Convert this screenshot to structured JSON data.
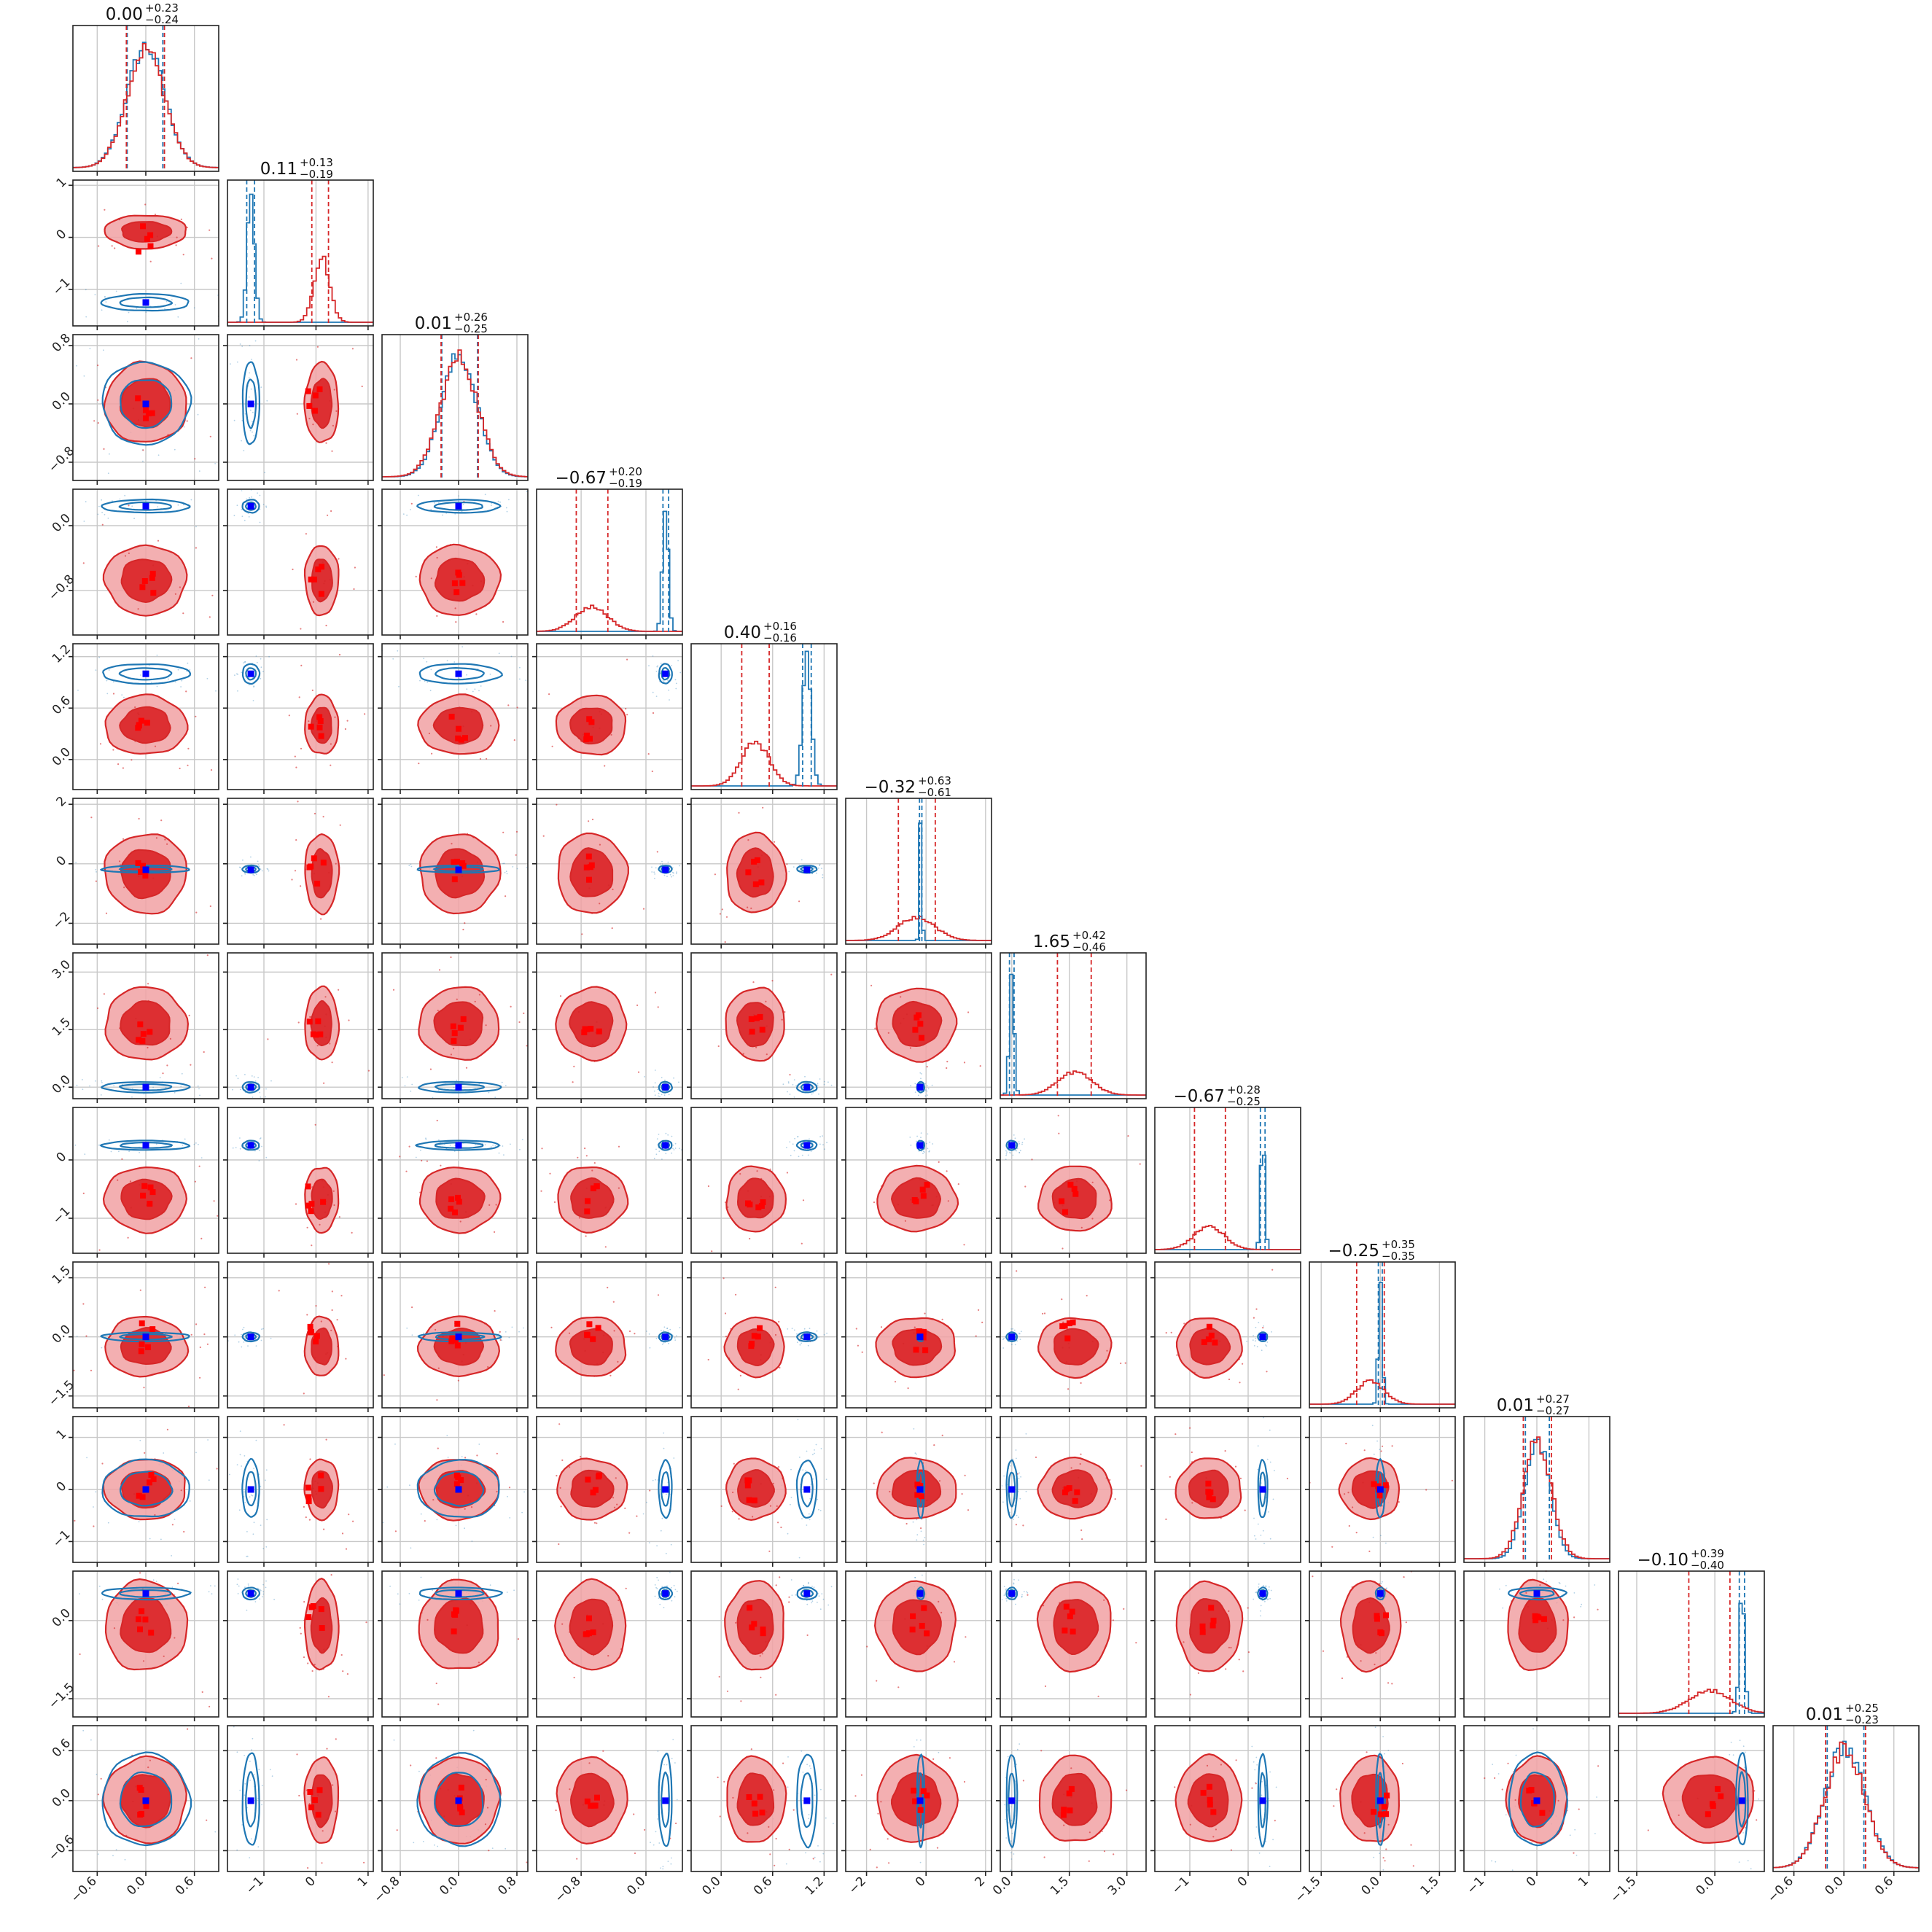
{
  "chart_data": {
    "type": "corner",
    "n_params": 12,
    "colors": {
      "series_a": "#d62728",
      "series_a_fill_light": "#f1a1a3",
      "series_a_fill_dark": "#dd2f32",
      "series_b": "#1f77b4",
      "marker_a": "#ff0000",
      "marker_b": "#0000ff",
      "grid": "#c8c8c8"
    },
    "grid": true,
    "parameters": [
      {
        "title": {
          "median": "0.00",
          "plus": "+0.23",
          "minus": "−0.24"
        },
        "range": [
          -0.9,
          0.9
        ],
        "ticks": [
          {
            "v": -0.6,
            "label": "−0.6"
          },
          {
            "v": 0.0,
            "label": "0.0"
          },
          {
            "v": 0.6,
            "label": "0.6"
          }
        ],
        "series_a": {
          "mean": 0.0,
          "sd": 0.235
        },
        "series_b": {
          "mean": 0.0,
          "sd": 0.235
        },
        "quantiles_a": [
          -0.24,
          0.23
        ],
        "quantiles_b": [
          -0.23,
          0.21
        ],
        "truth_a": 0.0,
        "truth_b": 0.0
      },
      {
        "title": {
          "median": "0.11",
          "plus": "+0.13",
          "minus": "−0.19"
        },
        "range": [
          -1.7,
          1.1
        ],
        "ticks": [
          {
            "v": -1,
            "label": "−1"
          },
          {
            "v": 0,
            "label": "0"
          },
          {
            "v": 1,
            "label": "1"
          }
        ],
        "series_a": {
          "mean": 0.11,
          "sd": 0.15
        },
        "series_b": {
          "mean": -1.25,
          "sd": 0.07
        },
        "quantiles_a": [
          -0.08,
          0.24
        ],
        "quantiles_b": [
          -1.33,
          -1.18
        ],
        "truth_a": 0.0,
        "truth_b": -1.25
      },
      {
        "title": {
          "median": "0.01",
          "plus": "+0.26",
          "minus": "−0.25"
        },
        "range": [
          -1.05,
          0.95
        ],
        "ticks": [
          {
            "v": -0.8,
            "label": "−0.8"
          },
          {
            "v": 0.0,
            "label": "0.0"
          },
          {
            "v": 0.8,
            "label": "0.8"
          }
        ],
        "series_a": {
          "mean": 0.01,
          "sd": 0.255
        },
        "series_b": {
          "mean": 0.01,
          "sd": 0.245
        },
        "quantiles_a": [
          -0.24,
          0.27
        ],
        "quantiles_b": [
          -0.23,
          0.26
        ],
        "truth_a": 0.0,
        "truth_b": 0.0
      },
      {
        "title": {
          "median": "−0.67",
          "plus": "+0.20",
          "minus": "−0.19"
        },
        "range": [
          -1.35,
          0.45
        ],
        "ticks": [
          {
            "v": -0.8,
            "label": "−0.8"
          },
          {
            "v": 0.0,
            "label": "0.0"
          }
        ],
        "series_a": {
          "mean": -0.67,
          "sd": 0.2
        },
        "series_b": {
          "mean": 0.24,
          "sd": 0.035
        },
        "quantiles_a": [
          -0.86,
          -0.47
        ],
        "quantiles_b": [
          0.21,
          0.28
        ],
        "truth_a": -0.67,
        "truth_b": 0.24
      },
      {
        "title": {
          "median": "0.40",
          "plus": "+0.16",
          "minus": "−0.16"
        },
        "range": [
          -0.35,
          1.35
        ],
        "ticks": [
          {
            "v": 0.0,
            "label": "0.0"
          },
          {
            "v": 0.6,
            "label": "0.6"
          },
          {
            "v": 1.2,
            "label": "1.2"
          }
        ],
        "series_a": {
          "mean": 0.4,
          "sd": 0.16
        },
        "series_b": {
          "mean": 1.0,
          "sd": 0.05
        },
        "quantiles_a": [
          0.24,
          0.56
        ],
        "quantiles_b": [
          0.95,
          1.05
        ],
        "truth_a": 0.4,
        "truth_b": 1.0
      },
      {
        "title": {
          "median": "−0.32",
          "plus": "+0.63",
          "minus": "−0.61"
        },
        "range": [
          -2.7,
          2.2
        ],
        "ticks": [
          {
            "v": -2,
            "label": "−2"
          },
          {
            "v": 0,
            "label": "0"
          },
          {
            "v": 2,
            "label": "2"
          }
        ],
        "series_a": {
          "mean": -0.32,
          "sd": 0.62
        },
        "series_b": {
          "mean": -0.18,
          "sd": 0.04
        },
        "quantiles_a": [
          -0.93,
          0.31
        ],
        "quantiles_b": [
          -0.22,
          -0.14
        ],
        "truth_a": -0.2,
        "truth_b": -0.2
      },
      {
        "title": {
          "median": "1.65",
          "plus": "+0.42",
          "minus": "−0.46"
        },
        "range": [
          -0.3,
          3.5
        ],
        "ticks": [
          {
            "v": 0.0,
            "label": "0.0"
          },
          {
            "v": 1.5,
            "label": "1.5"
          },
          {
            "v": 3.0,
            "label": "3.0"
          }
        ],
        "series_a": {
          "mean": 1.65,
          "sd": 0.44
        },
        "series_b": {
          "mean": 0.0,
          "sd": 0.06
        },
        "quantiles_a": [
          1.19,
          2.07
        ],
        "quantiles_b": [
          -0.06,
          0.06
        ],
        "truth_a": 1.5,
        "truth_b": 0.0
      },
      {
        "title": {
          "median": "−0.67",
          "plus": "+0.28",
          "minus": "−0.25"
        },
        "range": [
          -1.6,
          0.9
        ],
        "ticks": [
          {
            "v": -1,
            "label": "−1"
          },
          {
            "v": 0,
            "label": "0"
          }
        ],
        "series_a": {
          "mean": -0.67,
          "sd": 0.26
        },
        "series_b": {
          "mean": 0.25,
          "sd": 0.035
        },
        "quantiles_a": [
          -0.92,
          -0.39
        ],
        "quantiles_b": [
          0.21,
          0.29
        ],
        "truth_a": -0.67,
        "truth_b": 0.25
      },
      {
        "title": {
          "median": "−0.25",
          "plus": "+0.35",
          "minus": "−0.35"
        },
        "range": [
          -1.8,
          1.9
        ],
        "ticks": [
          {
            "v": -1.5,
            "label": "−1.5"
          },
          {
            "v": 0.0,
            "label": "0.0"
          },
          {
            "v": 1.5,
            "label": "1.5"
          }
        ],
        "series_a": {
          "mean": -0.25,
          "sd": 0.35
        },
        "series_b": {
          "mean": 0.0,
          "sd": 0.05
        },
        "quantiles_a": [
          -0.6,
          0.1
        ],
        "quantiles_b": [
          -0.05,
          0.05
        ],
        "truth_a": 0.0,
        "truth_b": 0.0
      },
      {
        "title": {
          "median": "0.01",
          "plus": "+0.27",
          "minus": "−0.27"
        },
        "range": [
          -1.4,
          1.4
        ],
        "ticks": [
          {
            "v": -1,
            "label": "−1"
          },
          {
            "v": 0,
            "label": "0"
          },
          {
            "v": 1,
            "label": "1"
          }
        ],
        "series_a": {
          "mean": 0.01,
          "sd": 0.27
        },
        "series_b": {
          "mean": 0.01,
          "sd": 0.24
        },
        "quantiles_a": [
          -0.26,
          0.28
        ],
        "quantiles_b": [
          -0.22,
          0.24
        ],
        "truth_a": 0.0,
        "truth_b": 0.0
      },
      {
        "title": {
          "median": "−0.10",
          "plus": "+0.39",
          "minus": "−0.40"
        },
        "range": [
          -1.85,
          0.95
        ],
        "ticks": [
          {
            "v": -1.5,
            "label": "−1.5"
          },
          {
            "v": 0.0,
            "label": "0.0"
          }
        ],
        "series_a": {
          "mean": -0.1,
          "sd": 0.4
        },
        "series_b": {
          "mean": 0.52,
          "sd": 0.05
        },
        "quantiles_a": [
          -0.5,
          0.29
        ],
        "quantiles_b": [
          0.47,
          0.57
        ],
        "truth_a": 0.0,
        "truth_b": 0.52
      },
      {
        "title": {
          "median": "0.01",
          "plus": "+0.25",
          "minus": "−0.23"
        },
        "range": [
          -0.85,
          0.9
        ],
        "ticks": [
          {
            "v": -0.6,
            "label": "−0.6"
          },
          {
            "v": 0.0,
            "label": "0.0"
          },
          {
            "v": 0.6,
            "label": "0.6"
          }
        ],
        "series_a": {
          "mean": 0.01,
          "sd": 0.24
        },
        "series_b": {
          "mean": 0.01,
          "sd": 0.24
        },
        "quantiles_a": [
          -0.22,
          0.26
        ],
        "quantiles_b": [
          -0.2,
          0.24
        ],
        "truth_a": 0.0,
        "truth_b": 0.0
      }
    ]
  }
}
